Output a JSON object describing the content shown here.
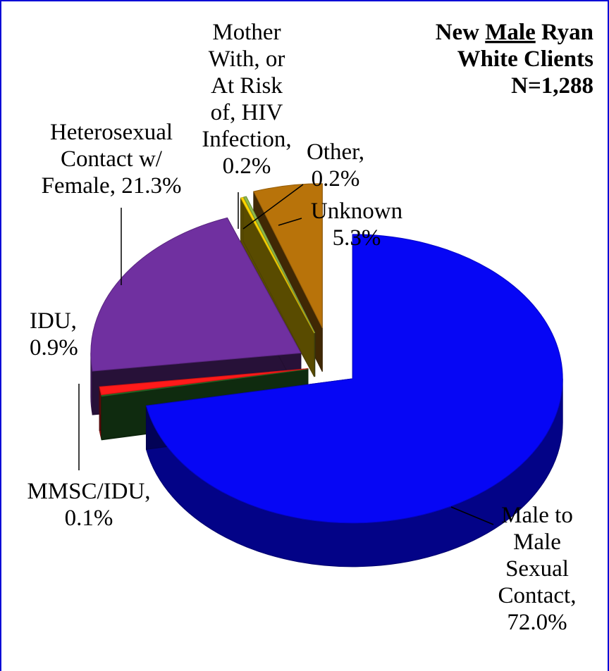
{
  "chart_data": {
    "type": "pie",
    "title_lines": [
      "New Male Ryan",
      "White Clients",
      "N=1,288"
    ],
    "title_underlined_word": "Male",
    "slices": [
      {
        "key": "msm",
        "label_lines": [
          "Male to",
          "Male",
          "Sexual",
          "Contact,",
          "72.0%"
        ],
        "value": 72.0,
        "color": "#0606f5"
      },
      {
        "key": "mmsc_idu",
        "label_lines": [
          "MMSC/IDU,",
          "0.1%"
        ],
        "value": 0.1,
        "color": "#2a7a2a"
      },
      {
        "key": "idu",
        "label_lines": [
          "IDU,",
          "0.9%"
        ],
        "value": 0.9,
        "color": "#ff1a1a"
      },
      {
        "key": "hetero",
        "label_lines": [
          "Heterosexual",
          "Contact w/",
          "Female, 21.3%"
        ],
        "value": 21.3,
        "color": "#7030a0"
      },
      {
        "key": "mother",
        "label_lines": [
          "Mother",
          "With, or",
          "At Risk",
          "of, HIV",
          "Infection,",
          "0.2%"
        ],
        "value": 0.2,
        "color": "#ffd700"
      },
      {
        "key": "other",
        "label_lines": [
          "Other,",
          "0.2%"
        ],
        "value": 0.2,
        "color": "#8fbc4f"
      },
      {
        "key": "unknown",
        "label_lines": [
          "Unknown",
          "5.3%"
        ],
        "value": 5.3,
        "color": "#b8730a"
      }
    ]
  }
}
